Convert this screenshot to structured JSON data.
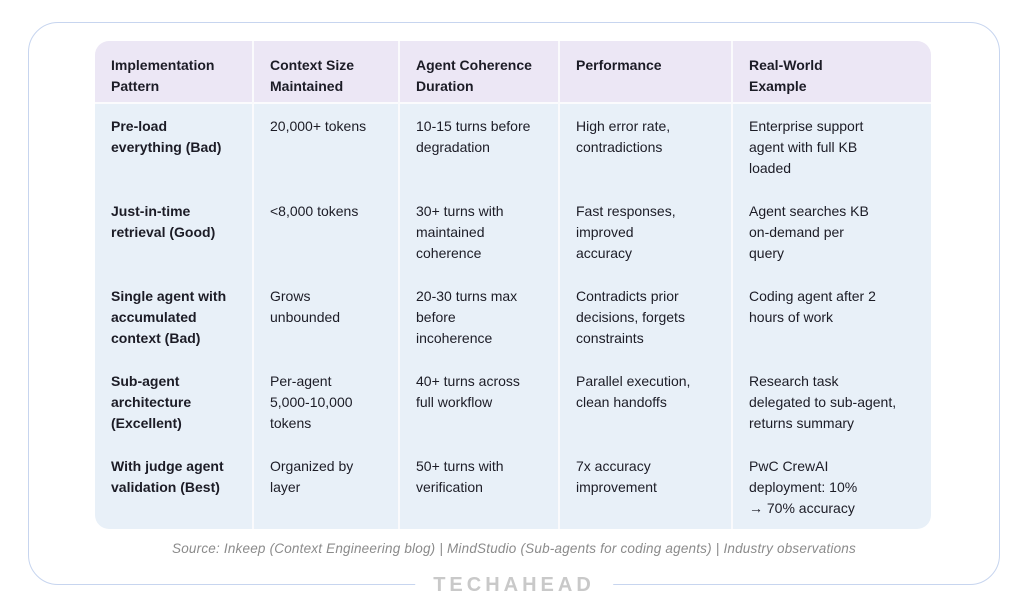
{
  "card": {
    "border_color": "#c7d5ef",
    "background": "#ffffff"
  },
  "table": {
    "header_bg": "#ece7f5",
    "body_bg": "#e8f0f8",
    "text_color": "#1c1c26",
    "divider_color": "#fafafc"
  },
  "chart_data": {
    "type": "table",
    "title": "",
    "columns": [
      "Implementation\nPattern",
      "Context Size\nMaintained",
      "Agent Coherence\nDuration",
      "Performance",
      "Real-World\nExample"
    ],
    "rows": [
      [
        "Pre-load\neverything (Bad)",
        "20,000+ tokens",
        "10-15 turns before\ndegradation",
        "High error rate,\ncontradictions",
        "Enterprise support\nagent with full KB\nloaded"
      ],
      [
        "Just-in-time\nretrieval (Good)",
        "<8,000 tokens",
        "30+ turns with\nmaintained\ncoherence",
        "Fast responses,\nimproved\naccuracy",
        "Agent searches KB\non-demand per\nquery"
      ],
      [
        "Single agent with\naccumulated\ncontext (Bad)",
        "Grows\nunbounded",
        "20-30 turns max\nbefore\nincoherence",
        "Contradicts prior\ndecisions, forgets\nconstraints",
        "Coding agent after 2\nhours of work"
      ],
      [
        "Sub-agent\narchitecture\n(Excellent)",
        "Per-agent\n5,000-10,000\ntokens",
        "40+ turns across\nfull workflow",
        "Parallel execution,\nclean handoffs",
        "Research task\ndelegated to sub-agent,\nreturns summary"
      ],
      [
        "With judge agent\nvalidation (Best)",
        "Organized by\nlayer",
        "50+ turns with\nverification",
        "7x accuracy\nimprovement",
        "PwC CrewAI\ndeployment: 10%\n→ 70% accuracy"
      ]
    ]
  },
  "source": {
    "text": "Source: Inkeep (Context Engineering blog) | MindStudio (Sub-agents for coding agents) | Industry observations",
    "color": "#8b8b8b"
  },
  "logo": {
    "text": "TECHAHEAD",
    "color": "#c9c9c9"
  }
}
